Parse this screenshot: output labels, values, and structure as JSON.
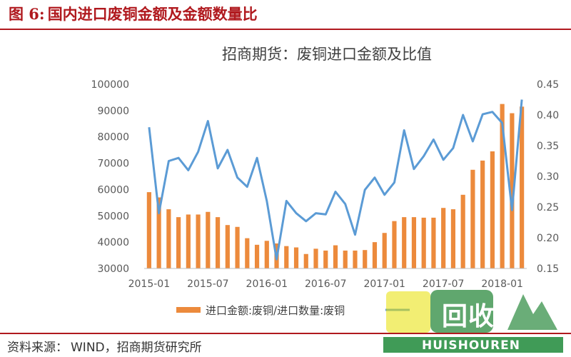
{
  "figure": {
    "number": "图 6:",
    "title": "国内进口废铜金额及金额数量比",
    "source_label": "资料来源：",
    "source_text": "WIND，招商期货研究所"
  },
  "watermark": {
    "logo_text": "回收",
    "logo_subtext": "HUISHOUREN"
  },
  "colors": {
    "title_red": "#b0191e",
    "bar": "#ec8a3c",
    "line": "#5b9bd5"
  },
  "chart_data": {
    "type": "bar+line",
    "title": "招商期货：废铜进口金额及比值",
    "x_tick_labels": [
      "2015-01",
      "2015-07",
      "2016-01",
      "2016-07",
      "2017-01",
      "2017-07",
      "2018-01"
    ],
    "y_left": {
      "min": 30000,
      "max": 100000,
      "step": 10000,
      "ticks": [
        "30000",
        "40000",
        "50000",
        "60000",
        "70000",
        "80000",
        "90000",
        "100000"
      ]
    },
    "y_right": {
      "min": 0.15,
      "max": 0.45,
      "step": 0.05,
      "ticks": [
        "0.15",
        "0.20",
        "0.25",
        "0.30",
        "0.35",
        "0.40",
        "0.45"
      ]
    },
    "x": [
      "2015-01",
      "2015-02",
      "2015-03",
      "2015-04",
      "2015-05",
      "2015-06",
      "2015-07",
      "2015-08",
      "2015-09",
      "2015-10",
      "2015-11",
      "2015-12",
      "2016-01",
      "2016-02",
      "2016-03",
      "2016-04",
      "2016-05",
      "2016-06",
      "2016-07",
      "2016-08",
      "2016-09",
      "2016-10",
      "2016-11",
      "2016-12",
      "2017-01",
      "2017-02",
      "2017-03",
      "2017-04",
      "2017-05",
      "2017-06",
      "2017-07",
      "2017-08",
      "2017-09",
      "2017-10",
      "2017-11",
      "2017-12",
      "2018-01",
      "2018-02",
      "2018-03"
    ],
    "series": [
      {
        "name": "进口金额:废铜",
        "type": "bar",
        "axis": "left",
        "values": [
          59000,
          57000,
          52500,
          49500,
          50500,
          50500,
          51500,
          49500,
          46500,
          45800,
          41500,
          39000,
          40500,
          39500,
          38500,
          38000,
          35500,
          37500,
          36800,
          38800,
          36800,
          36800,
          37000,
          40000,
          43500,
          48000,
          49500,
          49500,
          49300,
          49300,
          53000,
          52500,
          58000,
          67500,
          71000,
          74500,
          92500,
          89000,
          91500
        ]
      },
      {
        "name": "进口金额:废铜/进口数量:废铜",
        "type": "line",
        "axis": "right",
        "values": [
          0.38,
          0.24,
          0.325,
          0.33,
          0.31,
          0.34,
          0.39,
          0.313,
          0.343,
          0.298,
          0.283,
          0.33,
          0.26,
          0.165,
          0.26,
          0.24,
          0.227,
          0.24,
          0.238,
          0.275,
          0.255,
          0.205,
          0.278,
          0.298,
          0.27,
          0.29,
          0.375,
          0.312,
          0.333,
          0.36,
          0.327,
          0.346,
          0.4,
          0.357,
          0.401,
          0.405,
          0.387,
          0.245,
          0.425
        ]
      }
    ],
    "legend_placement": "bottom",
    "grid": false
  }
}
